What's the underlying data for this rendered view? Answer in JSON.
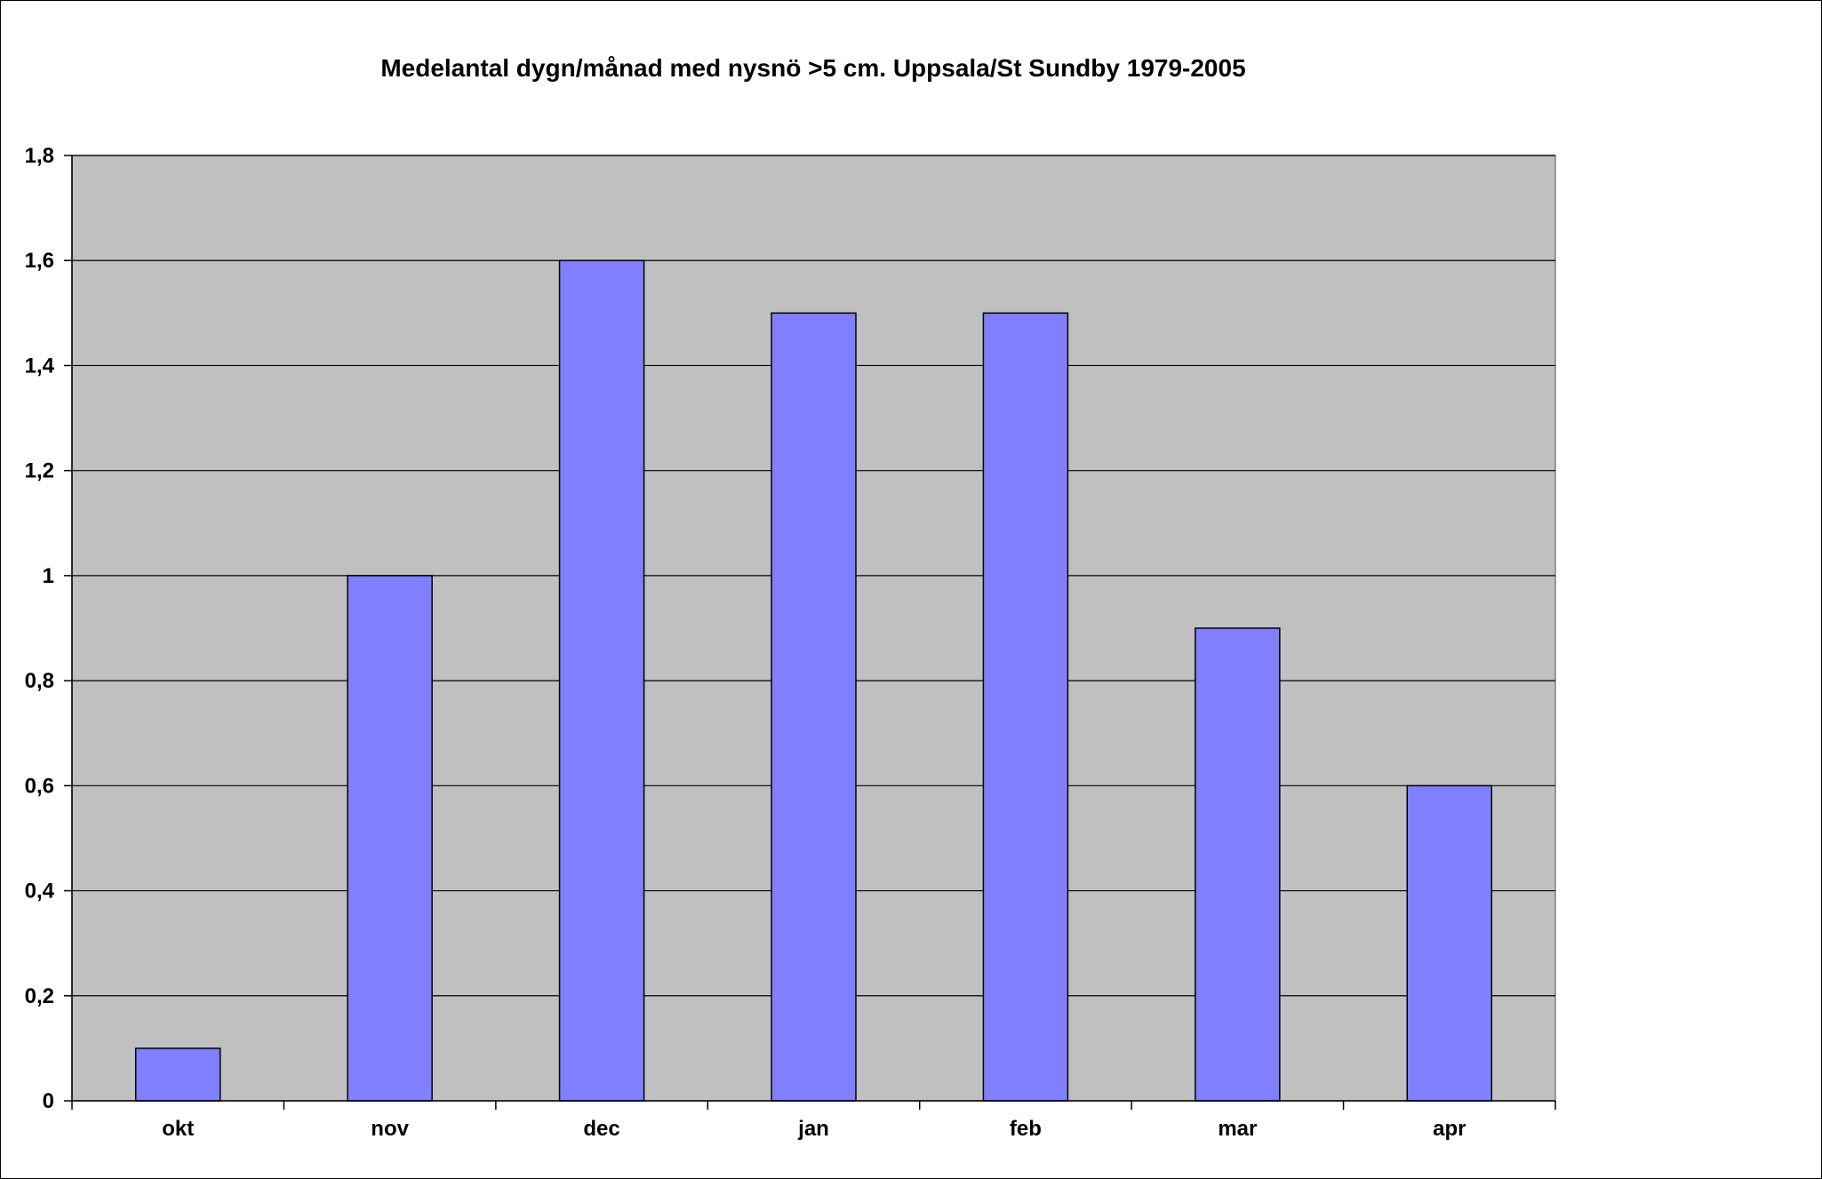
{
  "chart_data": {
    "type": "bar",
    "title": "Medelantal dygn/månad med nysnö >5 cm. Uppsala/St Sundby 1979-2005",
    "xlabel": "",
    "ylabel": "",
    "categories": [
      "okt",
      "nov",
      "dec",
      "jan",
      "feb",
      "mar",
      "apr"
    ],
    "values": [
      0.1,
      1.0,
      1.6,
      1.5,
      1.5,
      0.9,
      0.6
    ],
    "ylim": [
      0,
      1.8
    ],
    "yticks": [
      0,
      0.2,
      0.4,
      0.6,
      0.8,
      1,
      1.2,
      1.4,
      1.6,
      1.8
    ],
    "ytick_labels": [
      "0",
      "0,2",
      "0,4",
      "0,6",
      "0,8",
      "1",
      "1,2",
      "1,4",
      "1,6",
      "1,8"
    ],
    "grid": true,
    "legend": "none",
    "colors": {
      "bar": "#8080FF",
      "plot_background": "#C0C0C0",
      "grid": "#000000",
      "text": "#000000"
    }
  }
}
